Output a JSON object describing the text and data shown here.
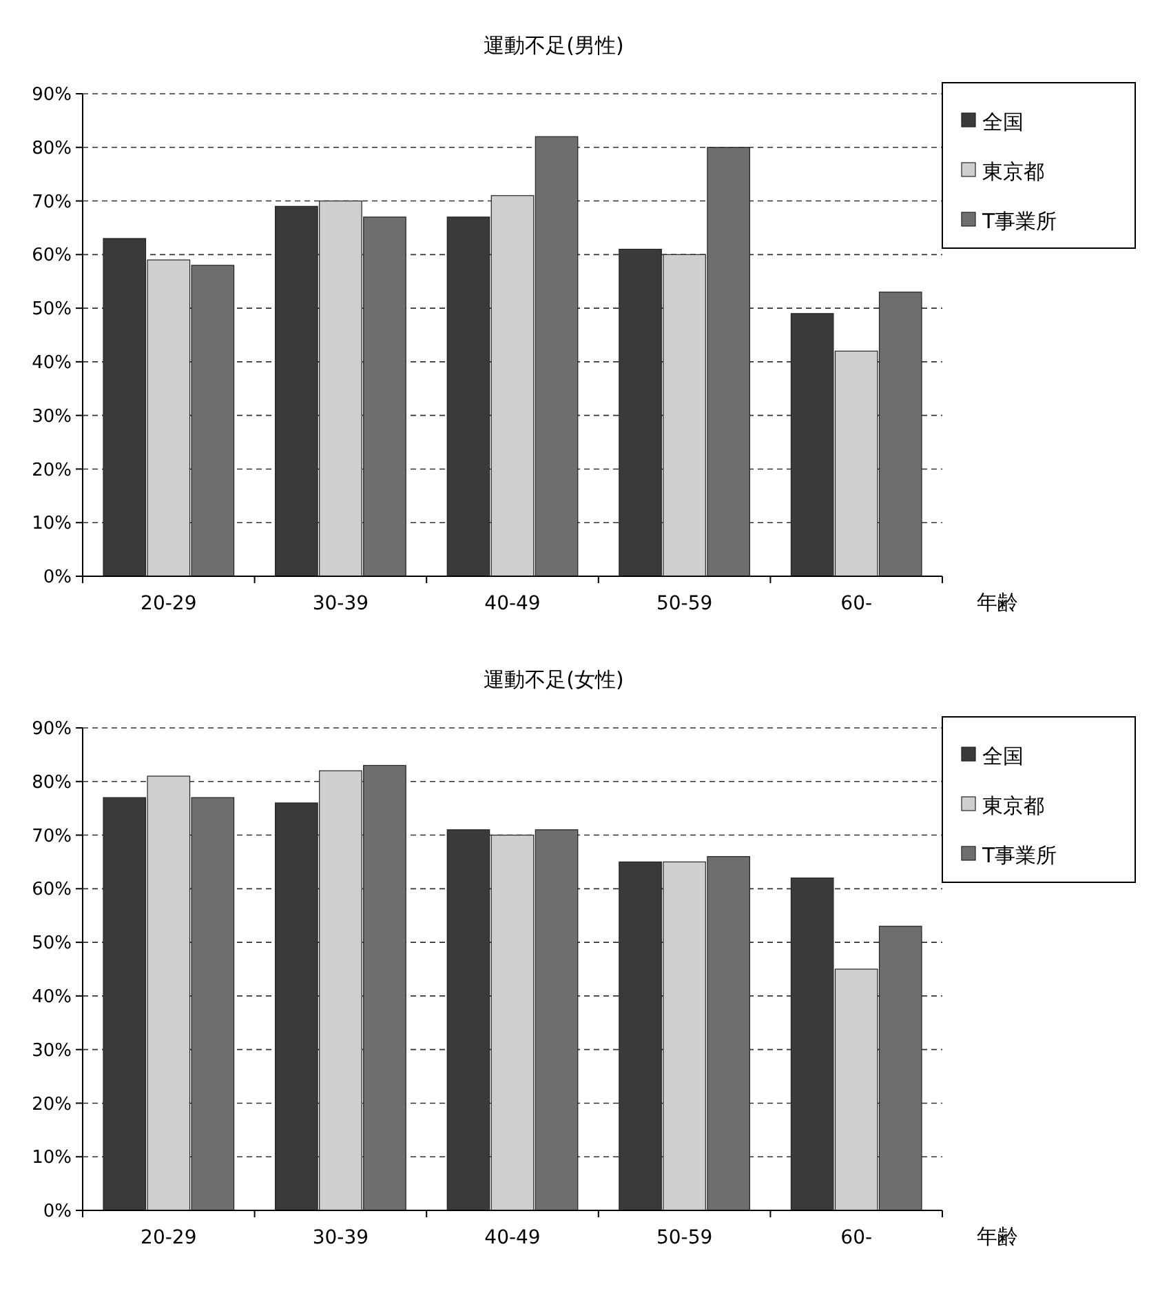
{
  "chart_data": [
    {
      "type": "bar",
      "title": "運動不足(男性)",
      "xlabel": "年齢",
      "categories": [
        "20-29",
        "30-39",
        "40-49",
        "50-59",
        "60-"
      ],
      "series": [
        {
          "name": "全国",
          "color": "#3a3a3a",
          "values": [
            63,
            69,
            67,
            61,
            49
          ]
        },
        {
          "name": "東京都",
          "color": "#cfcfcf",
          "values": [
            59,
            70,
            71,
            60,
            42
          ]
        },
        {
          "name": "T事業所",
          "color": "#6e6e6e",
          "values": [
            58,
            67,
            82,
            80,
            53
          ]
        }
      ],
      "ylim": [
        0,
        90
      ],
      "yticks": [
        {
          "value": 0,
          "label": "0%"
        },
        {
          "value": 10,
          "label": "10%"
        },
        {
          "value": 20,
          "label": "20%"
        },
        {
          "value": 30,
          "label": "30%"
        },
        {
          "value": 40,
          "label": "40%"
        },
        {
          "value": 50,
          "label": "50%"
        },
        {
          "value": 60,
          "label": "60%"
        },
        {
          "value": 70,
          "label": "70%"
        },
        {
          "value": 80,
          "label": "80%"
        },
        {
          "value": 90,
          "label": "90%"
        }
      ],
      "grid": "y",
      "legend": "top right"
    },
    {
      "type": "bar",
      "title": "運動不足(女性)",
      "xlabel": "年齢",
      "categories": [
        "20-29",
        "30-39",
        "40-49",
        "50-59",
        "60-"
      ],
      "series": [
        {
          "name": "全国",
          "color": "#3a3a3a",
          "values": [
            77,
            76,
            71,
            65,
            62
          ]
        },
        {
          "name": "東京都",
          "color": "#cfcfcf",
          "values": [
            81,
            82,
            70,
            65,
            45
          ]
        },
        {
          "name": "T事業所",
          "color": "#6e6e6e",
          "values": [
            77,
            83,
            71,
            66,
            53
          ]
        }
      ],
      "ylim": [
        0,
        90
      ],
      "yticks": [
        {
          "value": 0,
          "label": "0%"
        },
        {
          "value": 10,
          "label": "10%"
        },
        {
          "value": 20,
          "label": "20%"
        },
        {
          "value": 30,
          "label": "30%"
        },
        {
          "value": 40,
          "label": "40%"
        },
        {
          "value": 50,
          "label": "50%"
        },
        {
          "value": 60,
          "label": "60%"
        },
        {
          "value": 70,
          "label": "70%"
        },
        {
          "value": 80,
          "label": "80%"
        },
        {
          "value": 90,
          "label": "90%"
        }
      ],
      "grid": "y",
      "legend": "top right"
    }
  ]
}
